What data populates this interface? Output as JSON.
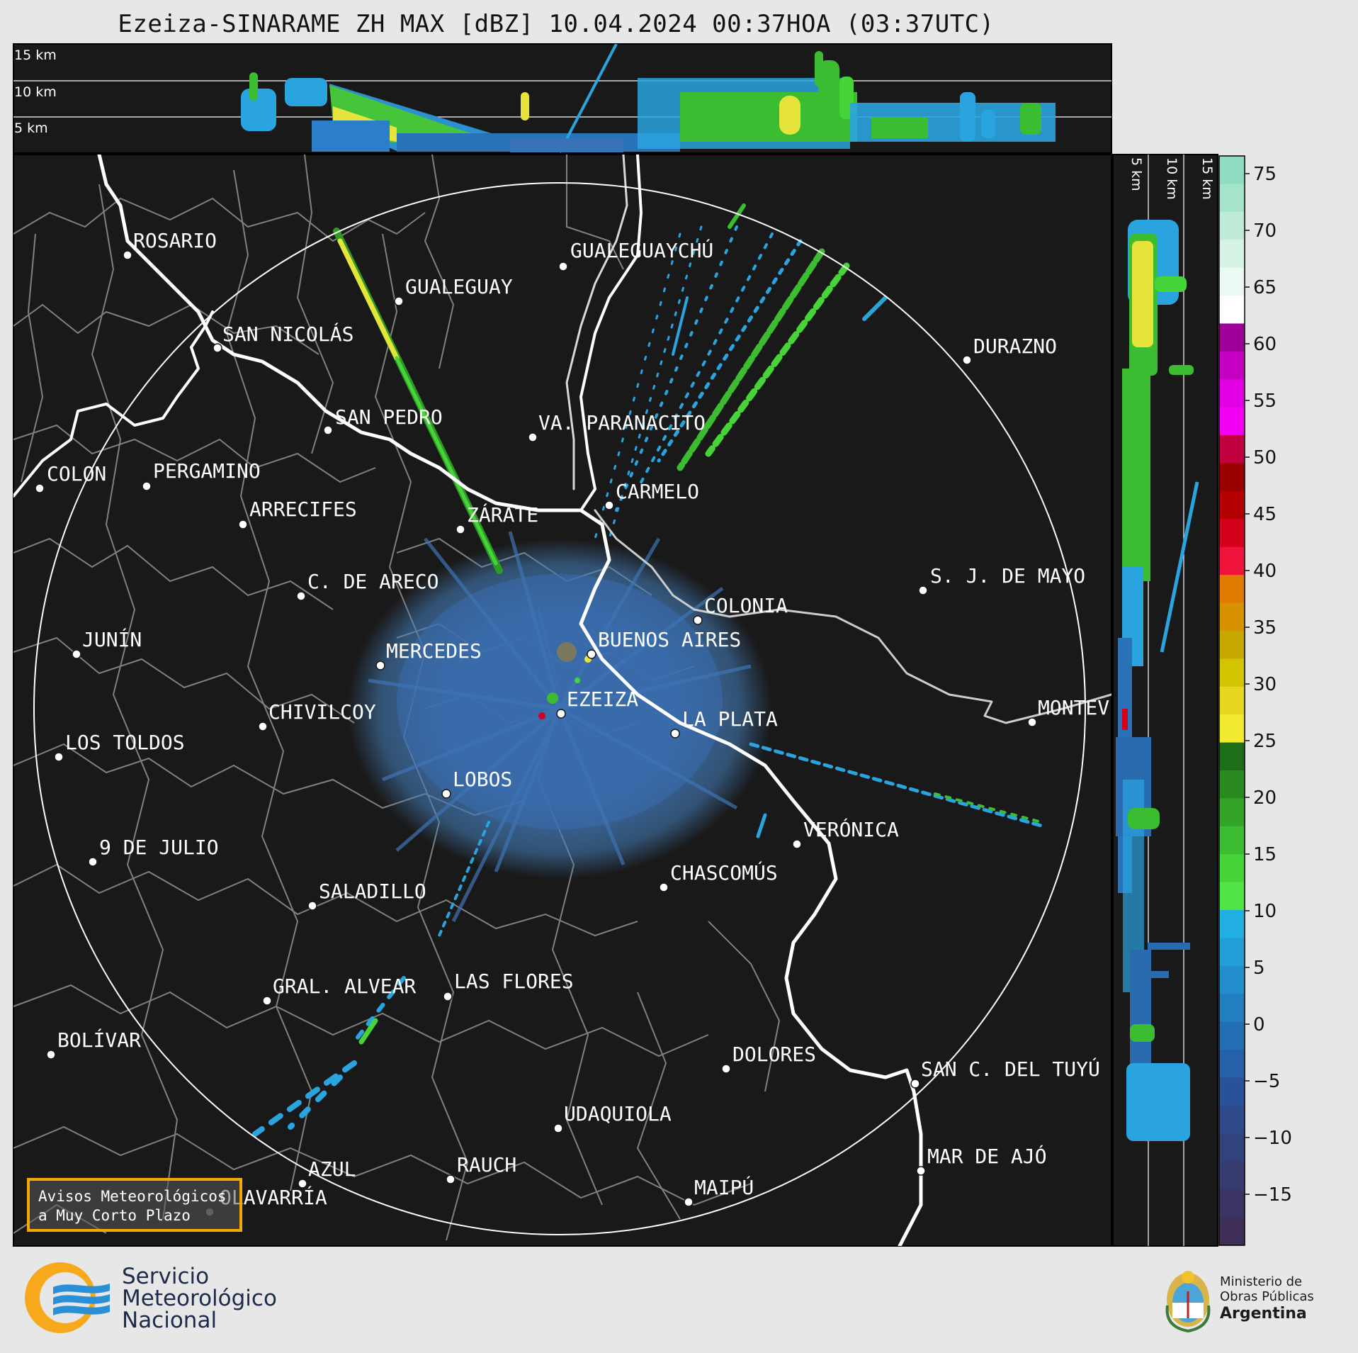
{
  "title": "Ezeiza-SINARAME ZH MAX [dBZ] 10.04.2024 00:37HOA (03:37UTC)",
  "height_labels_top": [
    "15 km",
    "10 km",
    "5 km"
  ],
  "height_labels_side": [
    "5 km",
    "10 km",
    "15 km"
  ],
  "colorbar": {
    "ticks": [
      "75",
      "70",
      "65",
      "60",
      "55",
      "50",
      "45",
      "40",
      "35",
      "30",
      "25",
      "20",
      "15",
      "10",
      "5",
      "0",
      "−5",
      "−10",
      "−15"
    ],
    "colors": [
      "#8fdcc0",
      "#a5e3cb",
      "#bfebd8",
      "#d7f3e6",
      "#eafaf2",
      "#ffffff",
      "#a0009a",
      "#c400c2",
      "#e100e4",
      "#f400f4",
      "#c20040",
      "#9a0000",
      "#b40000",
      "#d4001c",
      "#f0143c",
      "#e07a00",
      "#d89200",
      "#c8a800",
      "#d2c400",
      "#e6d820",
      "#f2ea30",
      "#1e6e18",
      "#2a8a20",
      "#34a428",
      "#3cbc30",
      "#46d438",
      "#52e446",
      "#21aee0",
      "#229ed6",
      "#228ecc",
      "#237ec0",
      "#246eb4",
      "#2660a8",
      "#2a5298",
      "#2e4a8a",
      "#32437c",
      "#373c70",
      "#3b3564",
      "#3f2f58"
    ]
  },
  "cities": [
    {
      "name": "ROSARIO"
    },
    {
      "name": "GUALEGUAYCHÚ"
    },
    {
      "name": "GUALEGUAY"
    },
    {
      "name": "SAN NICOLÁS"
    },
    {
      "name": "DURAZNO"
    },
    {
      "name": "SAN PEDRO"
    },
    {
      "name": "VA. PARANACITO"
    },
    {
      "name": "COLON"
    },
    {
      "name": "PERGAMINO"
    },
    {
      "name": "CARMELO"
    },
    {
      "name": "ARRECIFES"
    },
    {
      "name": "ZÁRATE"
    },
    {
      "name": "S. J. DE MAYO"
    },
    {
      "name": "C. DE ARECO"
    },
    {
      "name": "COLONIA"
    },
    {
      "name": "JUNÍN"
    },
    {
      "name": "BUENOS AIRES"
    },
    {
      "name": "MERCEDES"
    },
    {
      "name": "EZEIZA"
    },
    {
      "name": "MONTEV"
    },
    {
      "name": "CHIVILCOY"
    },
    {
      "name": "LA PLATA"
    },
    {
      "name": "LOS TOLDOS"
    },
    {
      "name": "LOBOS"
    },
    {
      "name": "VERÓNICA"
    },
    {
      "name": "9 DE JULIO"
    },
    {
      "name": "CHASCOMÚS"
    },
    {
      "name": "SALADILLO"
    },
    {
      "name": "GRAL. ALVEAR"
    },
    {
      "name": "LAS FLORES"
    },
    {
      "name": "BOLÍVAR"
    },
    {
      "name": "DOLORES"
    },
    {
      "name": "SAN C. DEL TUYÚ"
    },
    {
      "name": "UDAQUIOLA"
    },
    {
      "name": "AZUL"
    },
    {
      "name": "RAUCH"
    },
    {
      "name": "MAR DE AJÓ"
    },
    {
      "name": "OLAVARRÍA"
    },
    {
      "name": "MAIPÚ"
    }
  ],
  "avisos_text": "Avisos Meteorológicos\na Muy Corto Plazo",
  "footer": {
    "smn_line1": "Servicio",
    "smn_line2": "Meteorológico",
    "smn_line3": "Nacional",
    "ministry_line1": "Ministerio de",
    "ministry_line2": "Obras Públicas",
    "ministry_line3": "Argentina"
  },
  "colors": {
    "map_bg": "#191919",
    "range_ring": "#ffffff",
    "river": "#ffffff",
    "border": "#808080",
    "orange_accent": "#f2a900",
    "smn_blue": "#1c2b4a"
  }
}
